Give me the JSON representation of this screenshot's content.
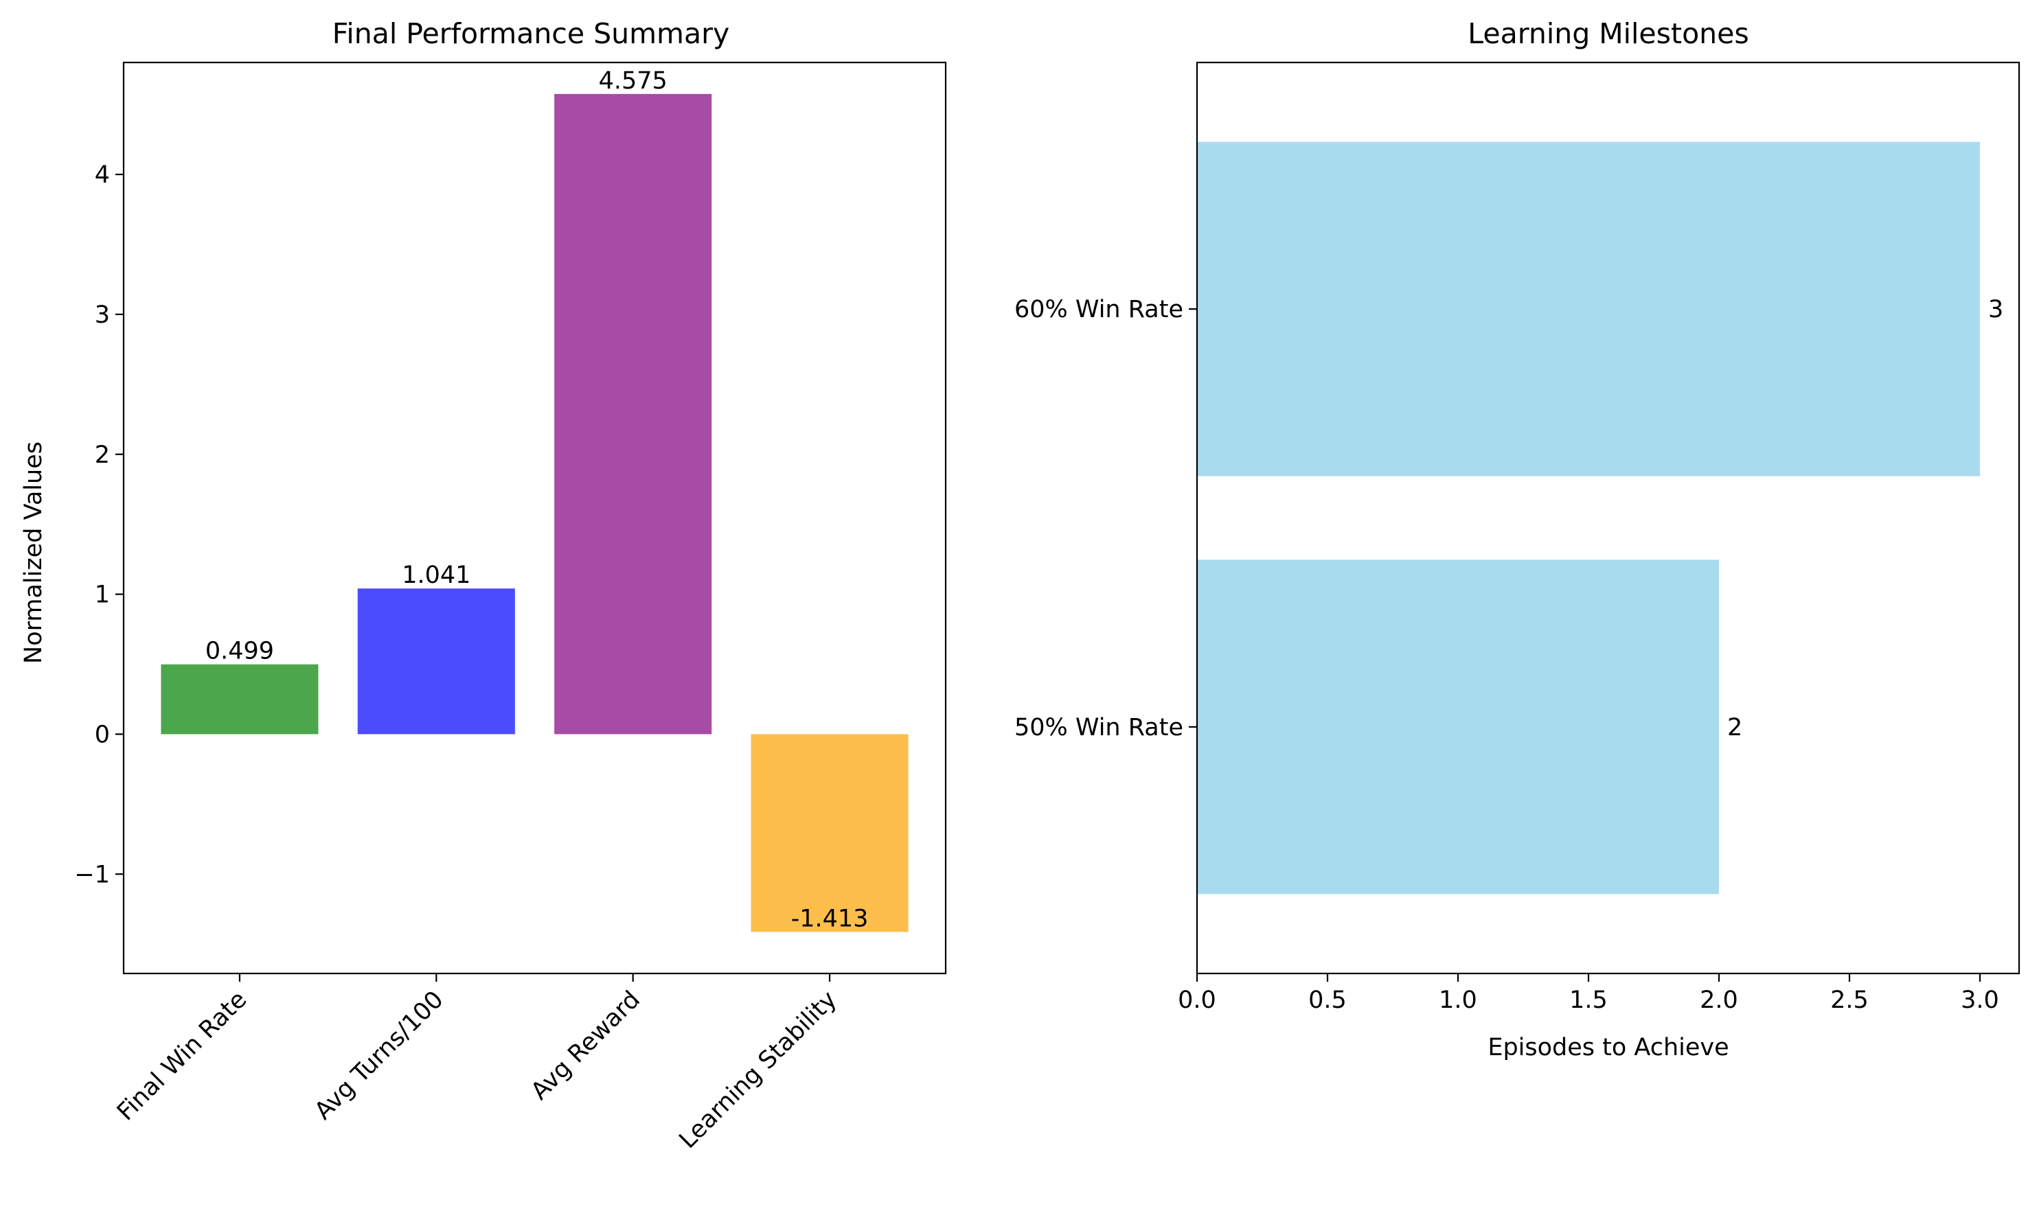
{
  "chart_data": [
    {
      "type": "bar",
      "orientation": "vertical",
      "title": "Final Performance Summary",
      "xlabel": "",
      "ylabel": "Normalized Values",
      "categories": [
        "Final Win Rate",
        "Avg Turns/100",
        "Avg Reward",
        "Learning Stability"
      ],
      "values": [
        0.499,
        1.041,
        4.575,
        -1.413
      ],
      "value_labels": [
        "0.499",
        "1.041",
        "4.575",
        "-1.413"
      ],
      "colors": [
        "#4ca64c",
        "#4c4cff",
        "#a64ca6",
        "#fdbe4c"
      ],
      "ylim": [
        -1.71,
        4.8
      ],
      "yticks": [
        -1,
        0,
        1,
        2,
        3,
        4
      ],
      "ytick_labels": [
        "−1",
        "0",
        "1",
        "2",
        "3",
        "4"
      ],
      "xtick_rotation_deg": 45,
      "grid": false,
      "legend": "none"
    },
    {
      "type": "bar",
      "orientation": "horizontal",
      "title": "Learning Milestones",
      "xlabel": "Episodes to Achieve",
      "ylabel": "",
      "categories": [
        "50% Win Rate",
        "60% Win Rate"
      ],
      "values": [
        2,
        3
      ],
      "value_labels": [
        "2",
        "3"
      ],
      "color": "#a9dbef",
      "xlim": [
        0,
        3.15
      ],
      "xticks": [
        0.0,
        0.5,
        1.0,
        1.5,
        2.0,
        2.5,
        3.0
      ],
      "xtick_labels": [
        "0.0",
        "0.5",
        "1.0",
        "1.5",
        "2.0",
        "2.5",
        "3.0"
      ],
      "grid": false,
      "legend": "none"
    }
  ]
}
